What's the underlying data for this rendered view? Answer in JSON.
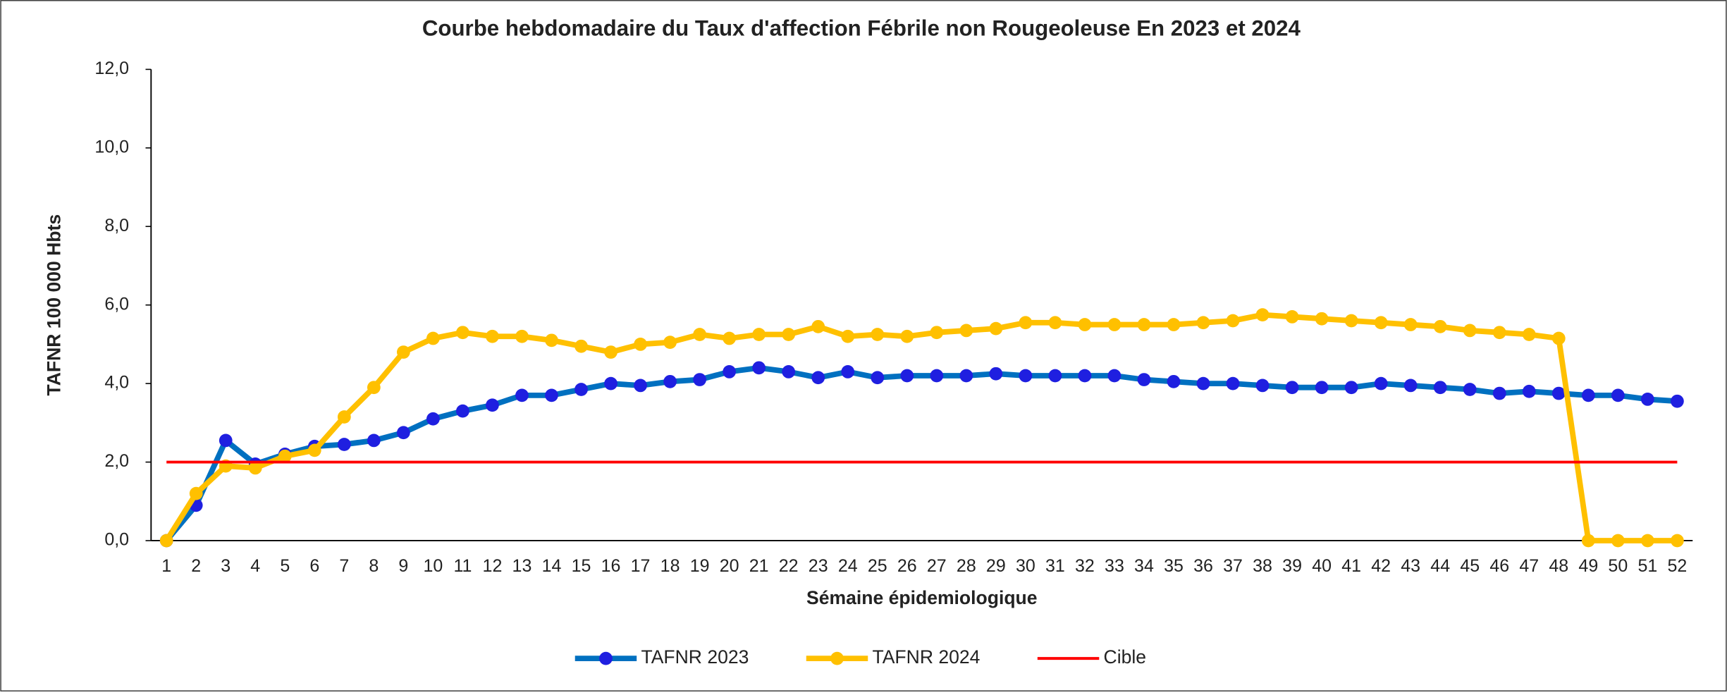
{
  "chart_data": {
    "type": "line",
    "title": "Courbe hebdomadaire du Taux d'affection Fébrile non Rougeoleuse En 2023 et 2024",
    "x_label": "Sémaine épidemiologique",
    "y_label": "TAFNR 100 000 Hbts",
    "categories": [
      "1",
      "2",
      "3",
      "4",
      "5",
      "6",
      "7",
      "8",
      "9",
      "10",
      "11",
      "12",
      "13",
      "14",
      "15",
      "16",
      "17",
      "18",
      "19",
      "20",
      "21",
      "22",
      "23",
      "24",
      "25",
      "26",
      "27",
      "28",
      "29",
      "30",
      "31",
      "32",
      "33",
      "34",
      "35",
      "36",
      "37",
      "38",
      "39",
      "40",
      "41",
      "42",
      "43",
      "44",
      "45",
      "46",
      "47",
      "48",
      "49",
      "50",
      "51",
      "52"
    ],
    "series": [
      {
        "name": "TAFNR 2023",
        "color": "#0070c0",
        "marker_color": "#1f1fe0",
        "markers": true,
        "values": [
          0,
          0.9,
          2.55,
          1.95,
          2.2,
          2.4,
          2.45,
          2.55,
          2.75,
          3.1,
          3.3,
          3.45,
          3.7,
          3.7,
          3.85,
          4.0,
          3.95,
          4.05,
          4.1,
          4.3,
          4.4,
          4.3,
          4.15,
          4.3,
          4.15,
          4.2,
          4.2,
          4.2,
          4.25,
          4.2,
          4.2,
          4.2,
          4.2,
          4.1,
          4.05,
          4.0,
          4.0,
          3.95,
          3.9,
          3.9,
          3.9,
          4.0,
          3.95,
          3.9,
          3.85,
          3.75,
          3.8,
          3.75,
          3.7,
          3.7,
          3.6,
          3.55
        ]
      },
      {
        "name": "TAFNR 2024",
        "color": "#ffc000",
        "marker_color": "#ffc000",
        "markers": true,
        "values": [
          0,
          1.2,
          1.9,
          1.85,
          2.15,
          2.3,
          3.15,
          3.9,
          4.8,
          5.15,
          5.3,
          5.2,
          5.2,
          5.1,
          4.95,
          4.8,
          5.0,
          5.05,
          5.25,
          5.15,
          5.25,
          5.25,
          5.45,
          5.2,
          5.25,
          5.2,
          5.3,
          5.35,
          5.4,
          5.55,
          5.55,
          5.5,
          5.5,
          5.5,
          5.5,
          5.55,
          5.6,
          5.75,
          5.7,
          5.65,
          5.6,
          5.55,
          5.5,
          5.45,
          5.35,
          5.3,
          5.25,
          5.15,
          0,
          0,
          0,
          0
        ]
      },
      {
        "name": "Cible",
        "color": "#ff0000",
        "markers": false,
        "values": [
          2,
          2,
          2,
          2,
          2,
          2,
          2,
          2,
          2,
          2,
          2,
          2,
          2,
          2,
          2,
          2,
          2,
          2,
          2,
          2,
          2,
          2,
          2,
          2,
          2,
          2,
          2,
          2,
          2,
          2,
          2,
          2,
          2,
          2,
          2,
          2,
          2,
          2,
          2,
          2,
          2,
          2,
          2,
          2,
          2,
          2,
          2,
          2,
          2,
          2,
          2,
          2
        ]
      }
    ],
    "ylim": [
      0,
      12
    ],
    "yticks": [
      {
        "value": 0,
        "label": "0,0"
      },
      {
        "value": 2,
        "label": "2,0"
      },
      {
        "value": 4,
        "label": "4,0"
      },
      {
        "value": 6,
        "label": "6,0"
      },
      {
        "value": 8,
        "label": "8,0"
      },
      {
        "value": 10,
        "label": "10,0"
      },
      {
        "value": 12,
        "label": "12,0"
      }
    ],
    "grid": false,
    "legend": "bottom"
  }
}
